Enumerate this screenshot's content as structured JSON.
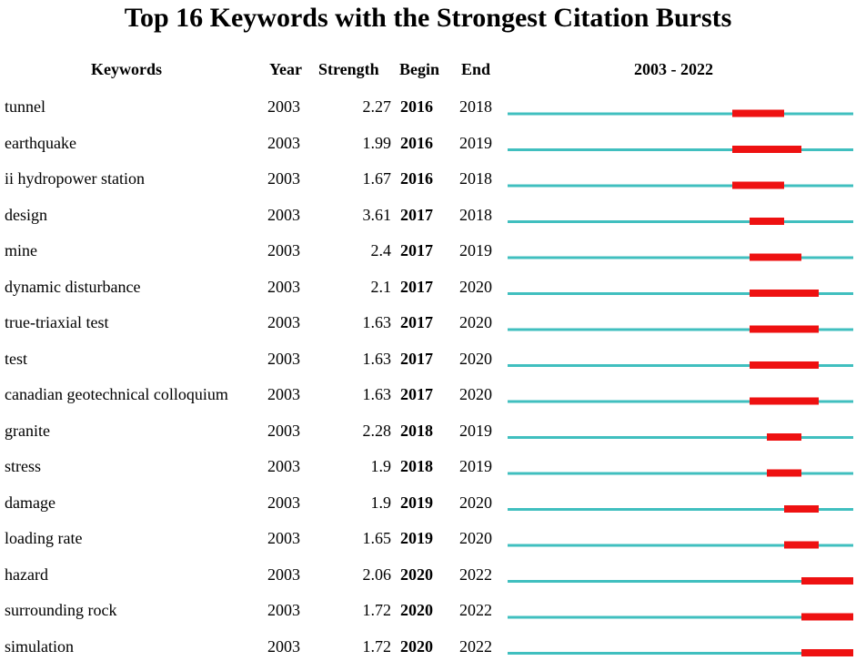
{
  "chart_data": {
    "type": "table",
    "title": "Top 16 Keywords with the Strongest Citation Bursts",
    "columns": [
      "Keywords",
      "Year",
      "Strength",
      "Begin",
      "End",
      "2003 - 2022"
    ],
    "range_start": 2003,
    "range_end": 2022,
    "rows": [
      {
        "keyword": "tunnel",
        "year": "2003",
        "strength": "2.27",
        "begin": "2016",
        "end": "2018"
      },
      {
        "keyword": "earthquake",
        "year": "2003",
        "strength": "1.99",
        "begin": "2016",
        "end": "2019"
      },
      {
        "keyword": "ii hydropower station",
        "year": "2003",
        "strength": "1.67",
        "begin": "2016",
        "end": "2018"
      },
      {
        "keyword": "design",
        "year": "2003",
        "strength": "3.61",
        "begin": "2017",
        "end": "2018"
      },
      {
        "keyword": "mine",
        "year": "2003",
        "strength": "2.4",
        "begin": "2017",
        "end": "2019"
      },
      {
        "keyword": "dynamic disturbance",
        "year": "2003",
        "strength": "2.1",
        "begin": "2017",
        "end": "2020"
      },
      {
        "keyword": "true-triaxial test",
        "year": "2003",
        "strength": "1.63",
        "begin": "2017",
        "end": "2020"
      },
      {
        "keyword": "test",
        "year": "2003",
        "strength": "1.63",
        "begin": "2017",
        "end": "2020"
      },
      {
        "keyword": "canadian geotechnical colloquium",
        "year": "2003",
        "strength": "1.63",
        "begin": "2017",
        "end": "2020"
      },
      {
        "keyword": "granite",
        "year": "2003",
        "strength": "2.28",
        "begin": "2018",
        "end": "2019"
      },
      {
        "keyword": "stress",
        "year": "2003",
        "strength": "1.9",
        "begin": "2018",
        "end": "2019"
      },
      {
        "keyword": "damage",
        "year": "2003",
        "strength": "1.9",
        "begin": "2019",
        "end": "2020"
      },
      {
        "keyword": "loading rate",
        "year": "2003",
        "strength": "1.65",
        "begin": "2019",
        "end": "2020"
      },
      {
        "keyword": "hazard",
        "year": "2003",
        "strength": "2.06",
        "begin": "2020",
        "end": "2022"
      },
      {
        "keyword": "surrounding rock",
        "year": "2003",
        "strength": "1.72",
        "begin": "2020",
        "end": "2022"
      },
      {
        "keyword": "simulation",
        "year": "2003",
        "strength": "1.72",
        "begin": "2020",
        "end": "2022"
      }
    ],
    "colors": {
      "baseline": "#40bfbf",
      "burst": "#ee1111"
    }
  }
}
